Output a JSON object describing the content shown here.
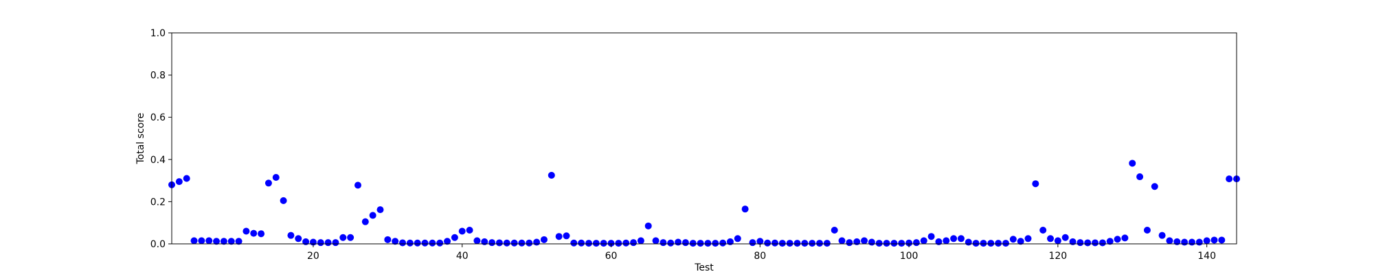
{
  "chart_data": {
    "type": "scatter",
    "title": "",
    "xlabel": "Test",
    "ylabel": "Total score",
    "xlim": [
      1,
      144
    ],
    "ylim": [
      0,
      1.0
    ],
    "x_ticks": [
      20,
      40,
      60,
      80,
      100,
      120,
      140
    ],
    "y_ticks": [
      0.0,
      0.2,
      0.4,
      0.6,
      0.8,
      1.0
    ],
    "x_tick_labels": [
      "20",
      "40",
      "60",
      "80",
      "100",
      "120",
      "140"
    ],
    "y_tick_labels": [
      "0.0",
      "0.2",
      "0.4",
      "0.6",
      "0.8",
      "1.0"
    ],
    "marker_color": "#0000ff",
    "grid": false,
    "series": [
      {
        "x": [
          1,
          2,
          3,
          4,
          5,
          6,
          7,
          8,
          9,
          10,
          11,
          12,
          13,
          14,
          15,
          16,
          17,
          18,
          19,
          20,
          21,
          22,
          23,
          24,
          25,
          26,
          27,
          28,
          29,
          30,
          31,
          32,
          33,
          34,
          35,
          36,
          37,
          38,
          39,
          40,
          41,
          42,
          43,
          44,
          45,
          46,
          47,
          48,
          49,
          50,
          51,
          52,
          53,
          54,
          55,
          56,
          57,
          58,
          59,
          60,
          61,
          62,
          63,
          64,
          65,
          66,
          67,
          68,
          69,
          70,
          71,
          72,
          73,
          74,
          75,
          76,
          77,
          78,
          79,
          80,
          81,
          82,
          83,
          84,
          85,
          86,
          87,
          88,
          89,
          90,
          91,
          92,
          93,
          94,
          95,
          96,
          97,
          98,
          99,
          100,
          101,
          102,
          103,
          104,
          105,
          106,
          107,
          108,
          109,
          110,
          111,
          112,
          113,
          114,
          115,
          116,
          117,
          118,
          119,
          120,
          121,
          122,
          123,
          124,
          125,
          126,
          127,
          128,
          129,
          130,
          131,
          132,
          133,
          134,
          135,
          136,
          137,
          138,
          139,
          140,
          141,
          142,
          143,
          144
        ],
        "y": [
          0.28,
          0.295,
          0.31,
          0.015,
          0.015,
          0.015,
          0.012,
          0.012,
          0.012,
          0.012,
          0.06,
          0.05,
          0.048,
          0.288,
          0.315,
          0.205,
          0.04,
          0.025,
          0.01,
          0.008,
          0.006,
          0.006,
          0.006,
          0.03,
          0.03,
          0.278,
          0.105,
          0.135,
          0.162,
          0.02,
          0.012,
          0.005,
          0.004,
          0.004,
          0.004,
          0.004,
          0.004,
          0.012,
          0.03,
          0.06,
          0.065,
          0.015,
          0.01,
          0.006,
          0.005,
          0.004,
          0.004,
          0.004,
          0.004,
          0.008,
          0.02,
          0.325,
          0.035,
          0.038,
          0.004,
          0.004,
          0.003,
          0.003,
          0.003,
          0.003,
          0.003,
          0.004,
          0.006,
          0.015,
          0.085,
          0.015,
          0.006,
          0.004,
          0.008,
          0.006,
          0.003,
          0.003,
          0.003,
          0.003,
          0.004,
          0.01,
          0.025,
          0.165,
          0.006,
          0.012,
          0.004,
          0.004,
          0.003,
          0.003,
          0.003,
          0.003,
          0.003,
          0.003,
          0.003,
          0.065,
          0.015,
          0.006,
          0.01,
          0.015,
          0.008,
          0.003,
          0.003,
          0.003,
          0.003,
          0.004,
          0.006,
          0.015,
          0.035,
          0.01,
          0.015,
          0.025,
          0.025,
          0.008,
          0.003,
          0.003,
          0.003,
          0.003,
          0.003,
          0.022,
          0.012,
          0.025,
          0.285,
          0.065,
          0.025,
          0.015,
          0.03,
          0.01,
          0.006,
          0.005,
          0.005,
          0.005,
          0.012,
          0.022,
          0.028,
          0.382,
          0.318,
          0.065,
          0.272,
          0.04,
          0.015,
          0.01,
          0.008,
          0.008,
          0.008,
          0.015,
          0.018,
          0.018,
          0.308,
          0.308
        ]
      }
    ]
  }
}
